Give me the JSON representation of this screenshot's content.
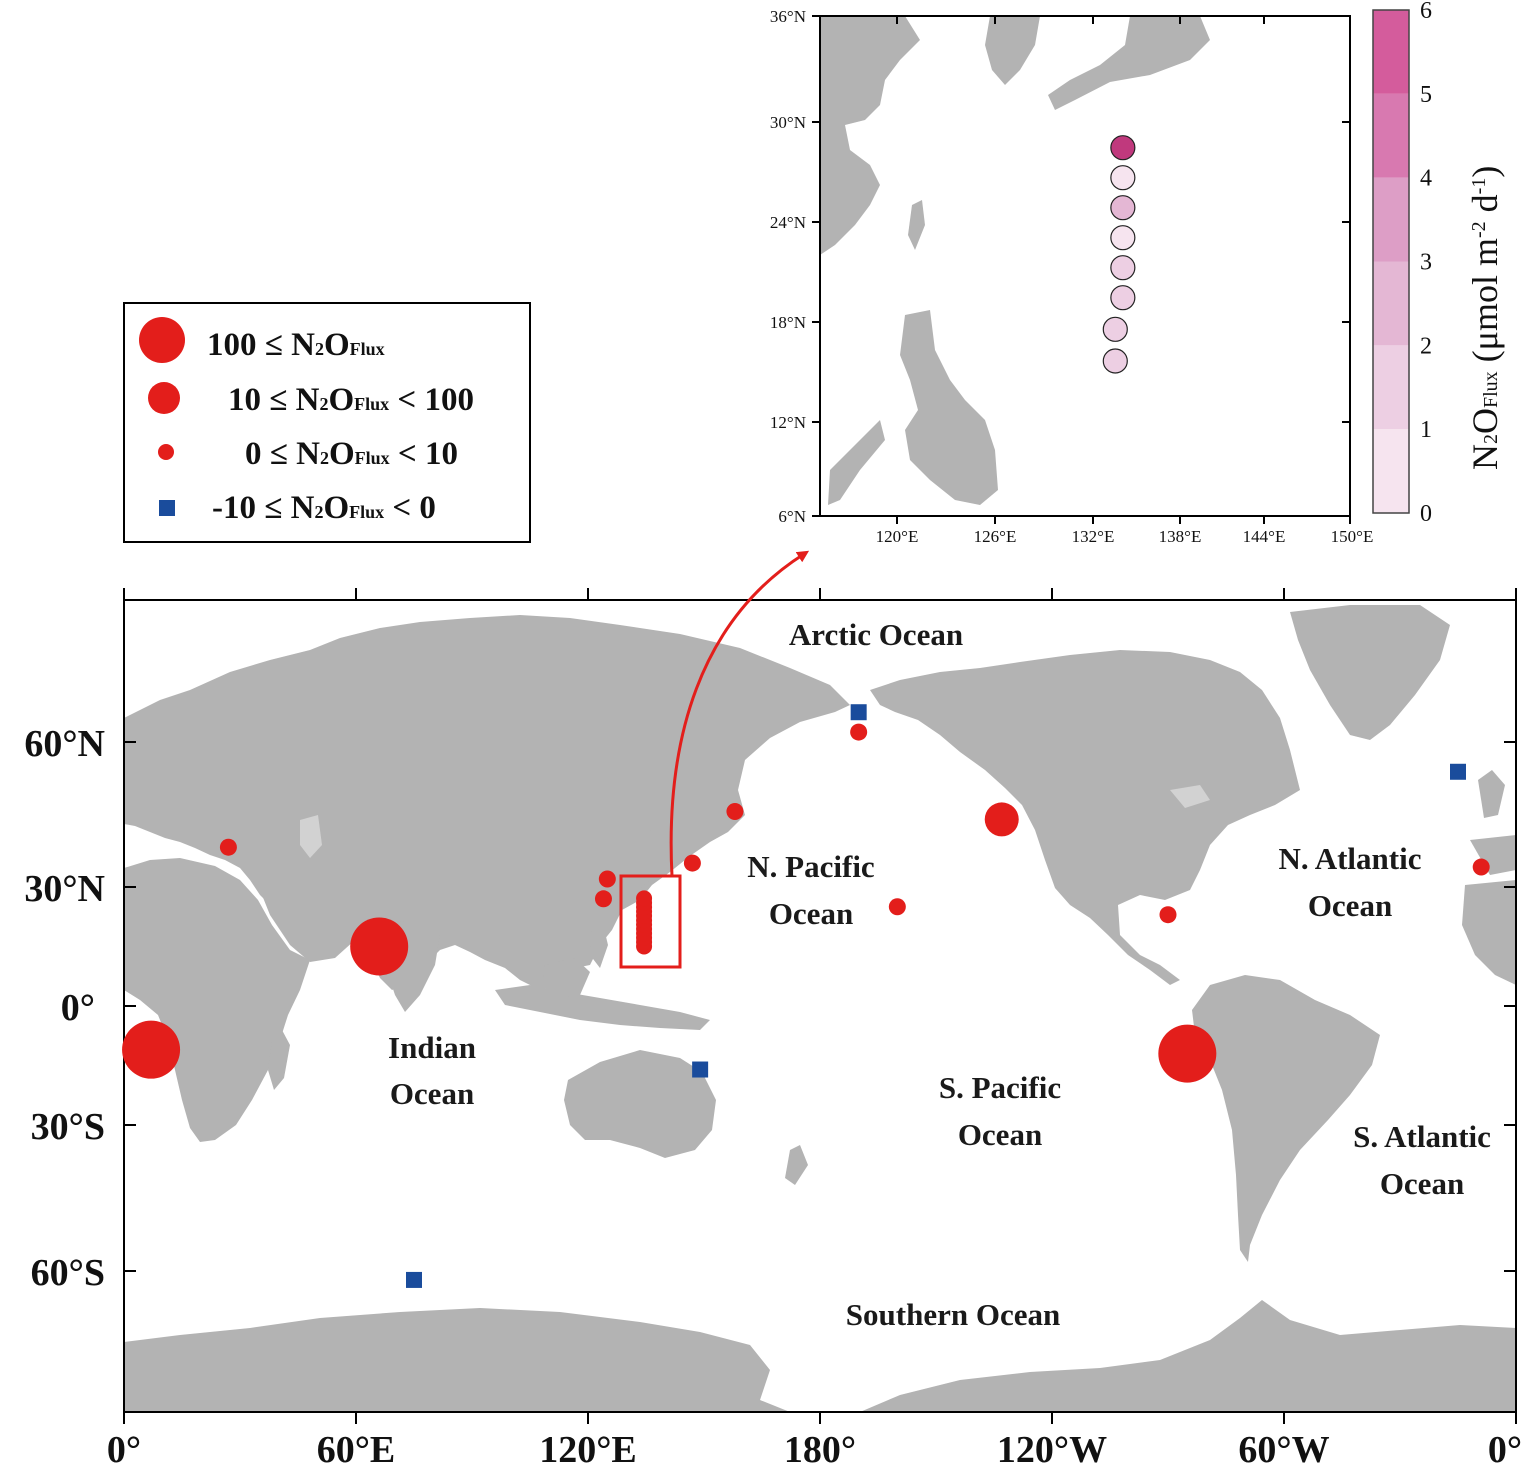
{
  "main_map": {
    "lat_ticks": [
      {
        "label": "60°N"
      },
      {
        "label": "30°N"
      },
      {
        "label": "0°"
      },
      {
        "label": "30°S"
      },
      {
        "label": "60°S"
      }
    ],
    "lon_ticks": [
      {
        "label": "0°"
      },
      {
        "label": "60°E"
      },
      {
        "label": "120°E"
      },
      {
        "label": "180°"
      },
      {
        "label": "120°W"
      },
      {
        "label": "60°W"
      },
      {
        "label": "0°"
      }
    ],
    "oceans": [
      {
        "lines": [
          "Arctic Ocean"
        ]
      },
      {
        "lines": [
          "N. Pacific",
          "Ocean"
        ]
      },
      {
        "lines": [
          "N. Atlantic",
          "Ocean"
        ]
      },
      {
        "lines": [
          "Indian",
          "Ocean"
        ]
      },
      {
        "lines": [
          "S. Pacific",
          "Ocean"
        ]
      },
      {
        "lines": [
          "S. Atlantic",
          "Ocean"
        ]
      },
      {
        "lines": [
          "Southern Ocean"
        ]
      }
    ],
    "sites": [
      {
        "lon": 7,
        "lat": -11,
        "class": "100 ≤ N2O Flux"
      },
      {
        "lon": 66,
        "lat": 15,
        "class": "100 ≤ N2O Flux"
      },
      {
        "lon": -85,
        "lat": -12,
        "class": "100 ≤ N2O Flux"
      },
      {
        "lon": -133,
        "lat": 47,
        "class": "10 ≤ N2O Flux < 100"
      },
      {
        "lon": 27,
        "lat": 40,
        "class": "0 ≤ N2O Flux < 10"
      },
      {
        "lon": 125,
        "lat": 32,
        "class": "0 ≤ N2O Flux < 10"
      },
      {
        "lon": 124,
        "lat": 27,
        "class": "0 ≤ N2O Flux < 10"
      },
      {
        "lon": 147,
        "lat": 36,
        "class": "0 ≤ N2O Flux < 10"
      },
      {
        "lon": 158,
        "lat": 49,
        "class": "0 ≤ N2O Flux < 10"
      },
      {
        "lon": -170,
        "lat": 69,
        "class": "0 ≤ N2O Flux < 10"
      },
      {
        "lon": -160,
        "lat": 25,
        "class": "0 ≤ N2O Flux < 10"
      },
      {
        "lon": -90,
        "lat": 23,
        "class": "0 ≤ N2O Flux < 10"
      },
      {
        "lon": -9,
        "lat": 35,
        "class": "0 ≤ N2O Flux < 10"
      },
      {
        "lon": -170,
        "lat": 74,
        "class": "-10 ≤ N2O Flux < 0"
      },
      {
        "lon": -15,
        "lat": 59,
        "class": "-10 ≤ N2O Flux < 0"
      },
      {
        "lon": 149,
        "lat": -16,
        "class": "-10 ≤ N2O Flux < 0"
      },
      {
        "lon": 75,
        "lat": -69,
        "class": "-10 ≤ N2O Flux < 0"
      }
    ],
    "transect": {
      "lon": 134.5,
      "lat_from": 15,
      "lat_to": 28
    }
  },
  "legend": {
    "items": [
      {
        "prefix": "100 ≤ N",
        "sub2": "2",
        "mid": "O",
        "subflux": "Flux",
        "suffix": ""
      },
      {
        "prefix": "10 ≤ N",
        "sub2": "2",
        "mid": "O",
        "subflux": "Flux",
        "suffix": " < 100"
      },
      {
        "prefix": "0 ≤ N",
        "sub2": "2",
        "mid": "O",
        "subflux": "Flux",
        "suffix": " < 10"
      },
      {
        "prefix": "-10 ≤ N",
        "sub2": "2",
        "mid": "O",
        "subflux": "Flux",
        "suffix": " < 0"
      }
    ]
  },
  "inset": {
    "lat_ticks": [
      {
        "label": "36°N"
      },
      {
        "label": "30°N"
      },
      {
        "label": "24°N"
      },
      {
        "label": "18°N"
      },
      {
        "label": "12°N"
      },
      {
        "label": "6°N"
      }
    ],
    "lon_ticks": [
      {
        "label": "120°E"
      },
      {
        "label": "126°E"
      },
      {
        "label": "132°E"
      },
      {
        "label": "138°E"
      },
      {
        "label": "144°E"
      },
      {
        "label": "150°E"
      }
    ],
    "stations": [
      {
        "lon": 135.0,
        "lat": 28.1,
        "flux": 5.3
      },
      {
        "lon": 135.0,
        "lat": 26.3,
        "flux": 0.6
      },
      {
        "lon": 135.0,
        "lat": 24.5,
        "flux": 2.0
      },
      {
        "lon": 135.0,
        "lat": 22.7,
        "flux": 0.7
      },
      {
        "lon": 135.0,
        "lat": 20.9,
        "flux": 1.2
      },
      {
        "lon": 135.0,
        "lat": 19.1,
        "flux": 1.3
      },
      {
        "lon": 134.5,
        "lat": 17.2,
        "flux": 1.4
      },
      {
        "lon": 134.5,
        "lat": 15.3,
        "flux": 1.2
      }
    ]
  },
  "colorbar": {
    "ticks": [
      "0",
      "1",
      "2",
      "3",
      "4",
      "5",
      "6"
    ],
    "colors": [
      "#f6e4ef",
      "#edcfe3",
      "#e4b7d4",
      "#dd9ec6",
      "#d879b0",
      "#d45c9c"
    ],
    "title_main": "N",
    "title_sub2": "2",
    "title_o": "O",
    "title_subflux": "Flux",
    "title_units": " (μmol m",
    "title_exp1": "-2",
    "title_d": " d",
    "title_exp2": "-1",
    "title_close": ")"
  },
  "colors": {
    "site_red": "#e31e1b",
    "site_blue": "#1a4c9c",
    "land": "#b3b3b3",
    "arrow": "#e31e1b"
  }
}
